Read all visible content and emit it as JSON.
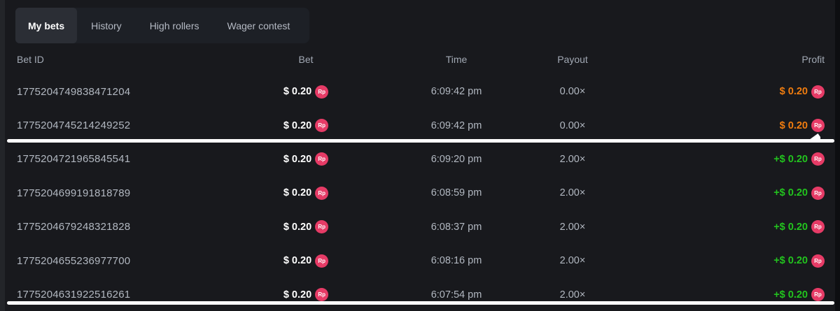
{
  "tabs": {
    "items": [
      {
        "label": "My bets",
        "active": true
      },
      {
        "label": "History",
        "active": false
      },
      {
        "label": "High rollers",
        "active": false
      },
      {
        "label": "Wager contest",
        "active": false
      }
    ]
  },
  "table": {
    "headers": {
      "bet_id": "Bet ID",
      "bet": "Bet",
      "time": "Time",
      "payout": "Payout",
      "profit": "Profit"
    },
    "currency_badge": "Rp",
    "rows": [
      {
        "bet_id": "1775204749838471204",
        "bet": "$ 0.20",
        "time": "6:09:42 pm",
        "payout": "0.00×",
        "profit": "$ 0.20",
        "profit_type": "loss"
      },
      {
        "bet_id": "1775204745214249252",
        "bet": "$ 0.20",
        "time": "6:09:42 pm",
        "payout": "0.00×",
        "profit": "$ 0.20",
        "profit_type": "loss"
      },
      {
        "bet_id": "1775204721965845541",
        "bet": "$ 0.20",
        "time": "6:09:20 pm",
        "payout": "2.00×",
        "profit": "+$ 0.20",
        "profit_type": "win"
      },
      {
        "bet_id": "1775204699191818789",
        "bet": "$ 0.20",
        "time": "6:08:59 pm",
        "payout": "2.00×",
        "profit": "+$ 0.20",
        "profit_type": "win"
      },
      {
        "bet_id": "1775204679248321828",
        "bet": "$ 0.20",
        "time": "6:08:37 pm",
        "payout": "2.00×",
        "profit": "+$ 0.20",
        "profit_type": "win"
      },
      {
        "bet_id": "1775204655236977700",
        "bet": "$ 0.20",
        "time": "6:08:16 pm",
        "payout": "2.00×",
        "profit": "+$ 0.20",
        "profit_type": "win"
      },
      {
        "bet_id": "1775204631922516261",
        "bet": "$ 0.20",
        "time": "6:07:54 pm",
        "payout": "2.00×",
        "profit": "+$ 0.20",
        "profit_type": "win"
      }
    ]
  },
  "colors": {
    "profit_win": "#22c31e",
    "profit_loss": "#ef7c0f",
    "currency_badge_bg": "#e63b66"
  }
}
